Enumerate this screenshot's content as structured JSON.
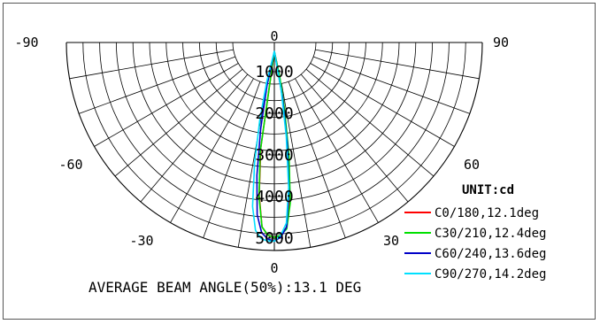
{
  "chart_data": {
    "type": "polar",
    "chart_kind": "luminous intensity distribution curve",
    "unit_label": "UNIT:cd",
    "angle_labels": [
      {
        "text": "-90",
        "angle": -90
      },
      {
        "text": "90",
        "angle": 90
      },
      {
        "text": "-60",
        "angle": -60
      },
      {
        "text": "60",
        "angle": 60
      },
      {
        "text": "-30",
        "angle": -30
      },
      {
        "text": "30",
        "angle": 30
      },
      {
        "text": "0",
        "angle": 0,
        "position": "top"
      },
      {
        "text": "0",
        "angle": 0,
        "position": "bottom"
      }
    ],
    "radial_labels": [
      "1000",
      "2000",
      "3000",
      "4000",
      "5000"
    ],
    "radial_range": [
      0,
      5000
    ],
    "angle_step_deg": 10,
    "radial_step": 1000,
    "grid": true,
    "legend_position": "bottom-right",
    "series": [
      {
        "name": "C0/180,12.1deg",
        "color": "#ff0000",
        "points": [
          [
            -8,
            2500
          ],
          [
            -6,
            3700
          ],
          [
            -4,
            4500
          ],
          [
            -2,
            4700
          ],
          [
            0,
            4750
          ],
          [
            2,
            4700
          ],
          [
            4,
            4500
          ],
          [
            6,
            3800
          ],
          [
            8,
            2600
          ],
          [
            10,
            1400
          ],
          [
            12,
            600
          ]
        ]
      },
      {
        "name": "C30/210,12.4deg",
        "color": "#00e000",
        "points": [
          [
            -8,
            2600
          ],
          [
            -6,
            3750
          ],
          [
            -4,
            4500
          ],
          [
            -2,
            4700
          ],
          [
            0,
            4750
          ],
          [
            2,
            4700
          ],
          [
            4,
            4550
          ],
          [
            6,
            3900
          ],
          [
            8,
            2700
          ],
          [
            10,
            1500
          ],
          [
            12,
            650
          ]
        ]
      },
      {
        "name": "C60/240,13.6deg",
        "color": "#0000c8",
        "points": [
          [
            -12,
            900
          ],
          [
            -10,
            2000
          ],
          [
            -8,
            3200
          ],
          [
            -6,
            4200
          ],
          [
            -4,
            4650
          ],
          [
            -2,
            4800
          ],
          [
            0,
            4850
          ],
          [
            2,
            4750
          ],
          [
            4,
            4500
          ],
          [
            6,
            3600
          ],
          [
            8,
            2400
          ],
          [
            10,
            1200
          ]
        ]
      },
      {
        "name": "C90/270,14.2deg",
        "color": "#00e0ff",
        "points": [
          [
            -14,
            800
          ],
          [
            -12,
            1800
          ],
          [
            -10,
            2900
          ],
          [
            -8,
            4000
          ],
          [
            -6,
            4600
          ],
          [
            -4,
            4800
          ],
          [
            -2,
            4850
          ],
          [
            0,
            4850
          ],
          [
            2,
            4700
          ],
          [
            4,
            4400
          ],
          [
            6,
            3500
          ],
          [
            8,
            2200
          ],
          [
            10,
            1000
          ]
        ]
      }
    ],
    "annotation": "AVERAGE BEAM ANGLE(50%):13.1 DEG"
  }
}
